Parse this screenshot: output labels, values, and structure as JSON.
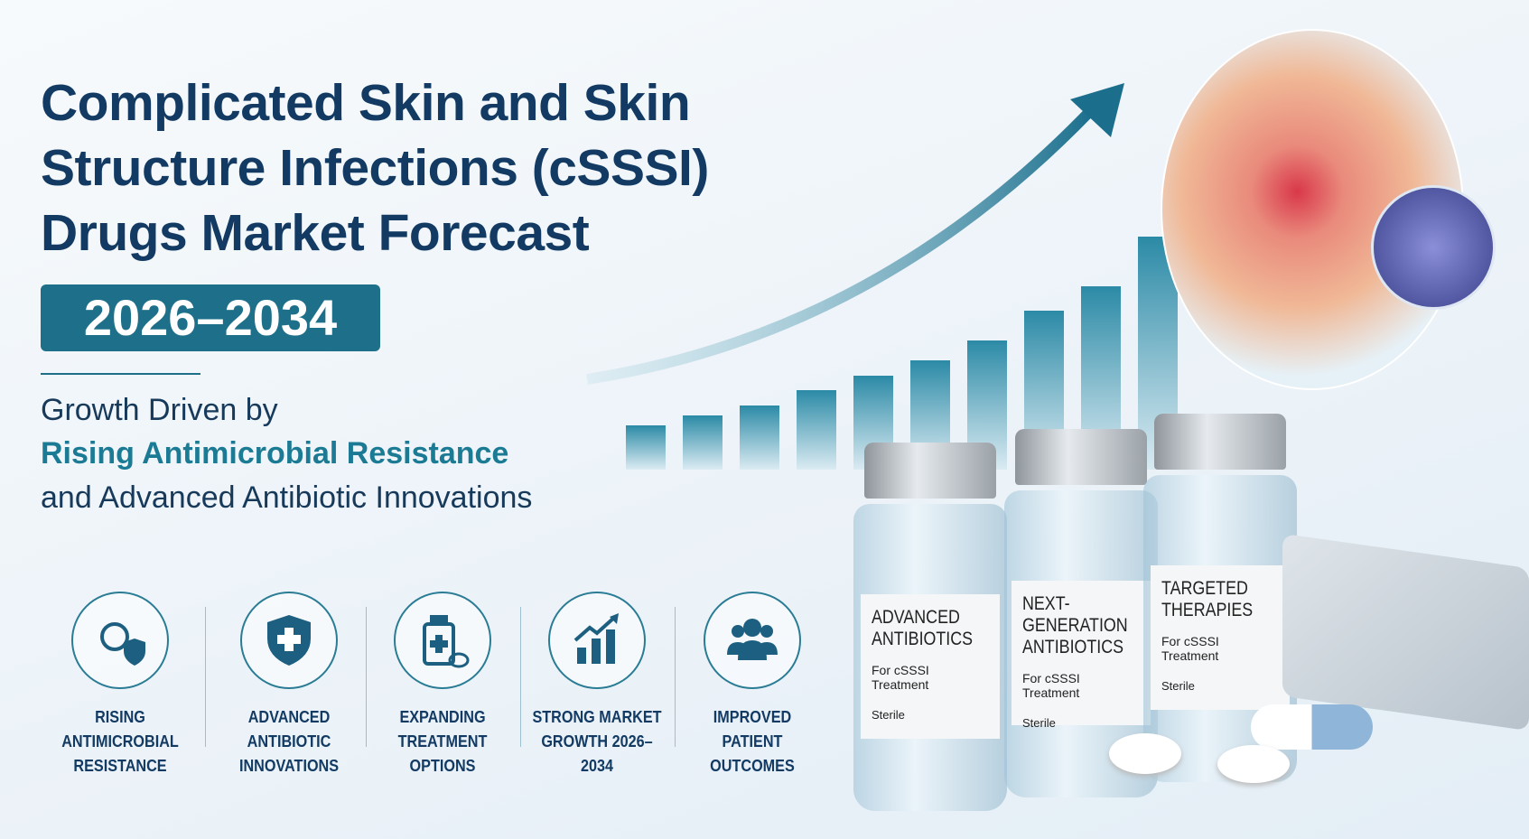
{
  "title": "Complicated Skin and Skin Structure Infections (cSSSI) Drugs Market Forecast",
  "years": "2026–2034",
  "subtitle": {
    "line1": "Growth Driven by",
    "line2": "Rising Antimicrobial Resistance",
    "line3": "and Advanced Antibiotic Innovations"
  },
  "features": [
    {
      "icon": "virus-shield-icon",
      "label": "RISING ANTIMICROBIAL RESISTANCE"
    },
    {
      "icon": "shield-cross-icon",
      "label": "ADVANCED ANTIBIOTIC INNOVATIONS"
    },
    {
      "icon": "medicine-bottle-icon",
      "label": "EXPANDING TREATMENT OPTIONS"
    },
    {
      "icon": "growth-chart-icon",
      "label": "STRONG MARKET GROWTH 2026–2034"
    },
    {
      "icon": "people-icon",
      "label": "IMPROVED PATIENT OUTCOMES"
    }
  ],
  "vials": [
    {
      "title": "ADVANCED ANTIBIOTICS",
      "sub": "For cSSSI Treatment",
      "note": "Sterile"
    },
    {
      "title": "NEXT-GENERATION ANTIBIOTICS",
      "sub": "For cSSSI Treatment",
      "note": "Sterile"
    },
    {
      "title": "TARGETED THERAPIES",
      "sub": "For cSSSI Treatment",
      "note": "Sterile"
    }
  ],
  "colors": {
    "primary": "#123a63",
    "accent": "#1d6f8a"
  }
}
